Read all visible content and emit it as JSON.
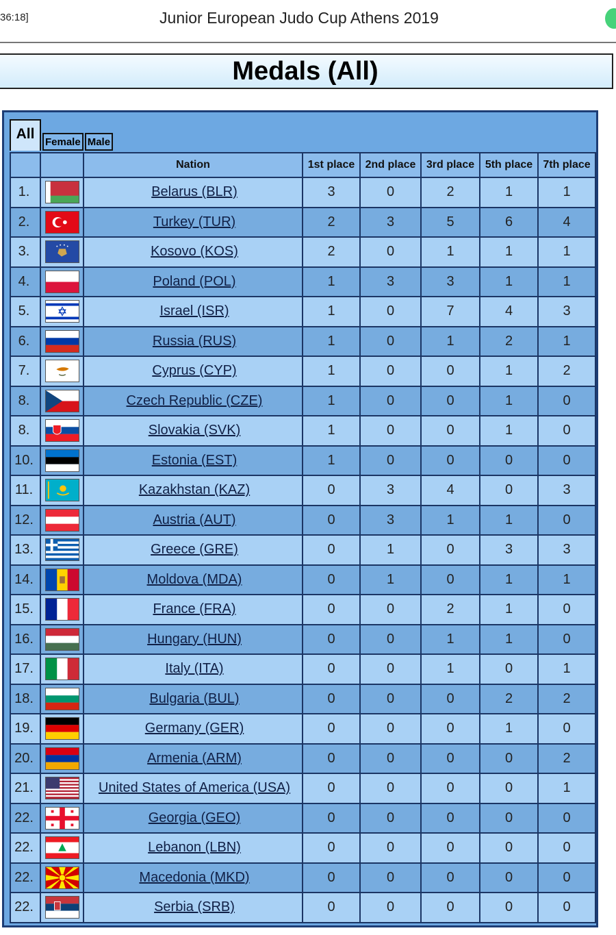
{
  "clock": "36:18]",
  "page_title": "Junior European Judo Cup Athens 2019",
  "banner": "Medals (All)",
  "tabs": {
    "all": "All",
    "female": "Female",
    "male": "Male"
  },
  "columns": [
    "",
    "",
    "Nation",
    "1st place",
    "2nd place",
    "3rd place",
    "5th place",
    "7th place"
  ],
  "rows": [
    {
      "rank": "1.",
      "nation": "Belarus (BLR)",
      "flag": "belarus-flag",
      "p1": "3",
      "p2": "0",
      "p3": "2",
      "p5": "1",
      "p7": "1"
    },
    {
      "rank": "2.",
      "nation": "Turkey (TUR)",
      "flag": "turkey-flag",
      "p1": "2",
      "p2": "3",
      "p3": "5",
      "p5": "6",
      "p7": "4"
    },
    {
      "rank": "3.",
      "nation": "Kosovo (KOS)",
      "flag": "kosovo-flag",
      "p1": "2",
      "p2": "0",
      "p3": "1",
      "p5": "1",
      "p7": "1"
    },
    {
      "rank": "4.",
      "nation": "Poland (POL)",
      "flag": "poland-flag",
      "p1": "1",
      "p2": "3",
      "p3": "3",
      "p5": "1",
      "p7": "1"
    },
    {
      "rank": "5.",
      "nation": "Israel (ISR)",
      "flag": "israel-flag",
      "p1": "1",
      "p2": "0",
      "p3": "7",
      "p5": "4",
      "p7": "3"
    },
    {
      "rank": "6.",
      "nation": "Russia (RUS)",
      "flag": "russia-flag",
      "p1": "1",
      "p2": "0",
      "p3": "1",
      "p5": "2",
      "p7": "1"
    },
    {
      "rank": "7.",
      "nation": "Cyprus (CYP)",
      "flag": "cyprus-flag",
      "p1": "1",
      "p2": "0",
      "p3": "0",
      "p5": "1",
      "p7": "2"
    },
    {
      "rank": "8.",
      "nation": "Czech Republic (CZE)",
      "flag": "czech-flag",
      "p1": "1",
      "p2": "0",
      "p3": "0",
      "p5": "1",
      "p7": "0"
    },
    {
      "rank": "8.",
      "nation": "Slovakia (SVK)",
      "flag": "slovakia-flag",
      "p1": "1",
      "p2": "0",
      "p3": "0",
      "p5": "1",
      "p7": "0"
    },
    {
      "rank": "10.",
      "nation": "Estonia (EST)",
      "flag": "estonia-flag",
      "p1": "1",
      "p2": "0",
      "p3": "0",
      "p5": "0",
      "p7": "0"
    },
    {
      "rank": "11.",
      "nation": "Kazakhstan (KAZ)",
      "flag": "kazakhstan-flag",
      "p1": "0",
      "p2": "3",
      "p3": "4",
      "p5": "0",
      "p7": "3"
    },
    {
      "rank": "12.",
      "nation": "Austria (AUT)",
      "flag": "austria-flag",
      "p1": "0",
      "p2": "3",
      "p3": "1",
      "p5": "1",
      "p7": "0"
    },
    {
      "rank": "13.",
      "nation": "Greece (GRE)",
      "flag": "greece-flag",
      "p1": "0",
      "p2": "1",
      "p3": "0",
      "p5": "3",
      "p7": "3"
    },
    {
      "rank": "14.",
      "nation": "Moldova (MDA)",
      "flag": "moldova-flag",
      "p1": "0",
      "p2": "1",
      "p3": "0",
      "p5": "1",
      "p7": "1"
    },
    {
      "rank": "15.",
      "nation": "France (FRA)",
      "flag": "france-flag",
      "p1": "0",
      "p2": "0",
      "p3": "2",
      "p5": "1",
      "p7": "0"
    },
    {
      "rank": "16.",
      "nation": "Hungary (HUN)",
      "flag": "hungary-flag",
      "p1": "0",
      "p2": "0",
      "p3": "1",
      "p5": "1",
      "p7": "0"
    },
    {
      "rank": "17.",
      "nation": "Italy (ITA)",
      "flag": "italy-flag",
      "p1": "0",
      "p2": "0",
      "p3": "1",
      "p5": "0",
      "p7": "1"
    },
    {
      "rank": "18.",
      "nation": "Bulgaria (BUL)",
      "flag": "bulgaria-flag",
      "p1": "0",
      "p2": "0",
      "p3": "0",
      "p5": "2",
      "p7": "2"
    },
    {
      "rank": "19.",
      "nation": "Germany (GER)",
      "flag": "germany-flag",
      "p1": "0",
      "p2": "0",
      "p3": "0",
      "p5": "1",
      "p7": "0"
    },
    {
      "rank": "20.",
      "nation": "Armenia (ARM)",
      "flag": "armenia-flag",
      "p1": "0",
      "p2": "0",
      "p3": "0",
      "p5": "0",
      "p7": "2"
    },
    {
      "rank": "21.",
      "nation": "United States of America (USA)",
      "flag": "usa-flag",
      "p1": "0",
      "p2": "0",
      "p3": "0",
      "p5": "0",
      "p7": "1"
    },
    {
      "rank": "22.",
      "nation": "Georgia (GEO)",
      "flag": "georgia-flag",
      "p1": "0",
      "p2": "0",
      "p3": "0",
      "p5": "0",
      "p7": "0"
    },
    {
      "rank": "22.",
      "nation": "Lebanon (LBN)",
      "flag": "lebanon-flag",
      "p1": "0",
      "p2": "0",
      "p3": "0",
      "p5": "0",
      "p7": "0"
    },
    {
      "rank": "22.",
      "nation": "Macedonia (MKD)",
      "flag": "macedonia-flag",
      "p1": "0",
      "p2": "0",
      "p3": "0",
      "p5": "0",
      "p7": "0"
    },
    {
      "rank": "22.",
      "nation": "Serbia (SRB)",
      "flag": "serbia-flag",
      "p1": "0",
      "p2": "0",
      "p3": "0",
      "p5": "0",
      "p7": "0"
    }
  ]
}
